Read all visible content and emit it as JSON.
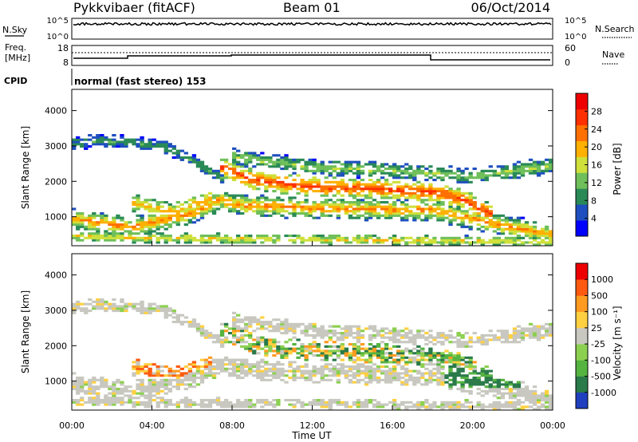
{
  "header": {
    "station": "Pykkvibaer (fitACF)",
    "beam": "Beam 01",
    "date": "06/Oct/2014"
  },
  "aux": {
    "nsky_label": "N.Sky",
    "nsearch_label": "N.Search",
    "nsky_ticks": [
      "10^5",
      "10^0"
    ],
    "nsearch_ticks": [
      "10^5",
      "10^0"
    ],
    "freq_label_line1": "Freq.",
    "freq_label_line2": "[MHz]",
    "freq_ticks": [
      "18",
      "8"
    ],
    "nave_label": "Nave",
    "nave_ticks": [
      "60",
      "0"
    ],
    "cpid_label": "CPID",
    "cpid_text": "normal (fast stereo) 153"
  },
  "chart_data": [
    {
      "type": "heatmap",
      "title": "",
      "ylabel": "Slant Range [km]",
      "ylim": [
        180,
        4600
      ],
      "yticks": [
        "1000",
        "2000",
        "3000",
        "4000"
      ],
      "colorbar_label": "Power [dB]",
      "colorbar_ticks": [
        "28",
        "24",
        "20",
        "16",
        "12",
        "8",
        "4"
      ],
      "colorscale": [
        "#0000ff",
        "#1f4fbf",
        "#2a8a57",
        "#6fbf5a",
        "#cfe03a",
        "#ffb000",
        "#ff7000",
        "#ff3000",
        "#ee0000"
      ]
    },
    {
      "type": "heatmap",
      "title": "",
      "ylabel": "Slant Range [km]",
      "ylim": [
        180,
        4600
      ],
      "yticks": [
        "1000",
        "2000",
        "3000",
        "4000"
      ],
      "xlabel": "Time UT",
      "xticks": [
        "00:00",
        "04:00",
        "08:00",
        "12:00",
        "16:00",
        "20:00",
        "00:00"
      ],
      "colorbar_label": "Velocity [m s⁻¹]",
      "colorbar_ticks": [
        "1000",
        "500",
        "100",
        "25",
        "-25",
        "-100",
        "-500",
        "-1000"
      ],
      "colorscale": [
        "#2040c0",
        "#2a7a4a",
        "#55b340",
        "#8cd050",
        "#c8c8c0",
        "#ffd040",
        "#ff9a20",
        "#ff5a10",
        "#ee0000"
      ]
    }
  ]
}
